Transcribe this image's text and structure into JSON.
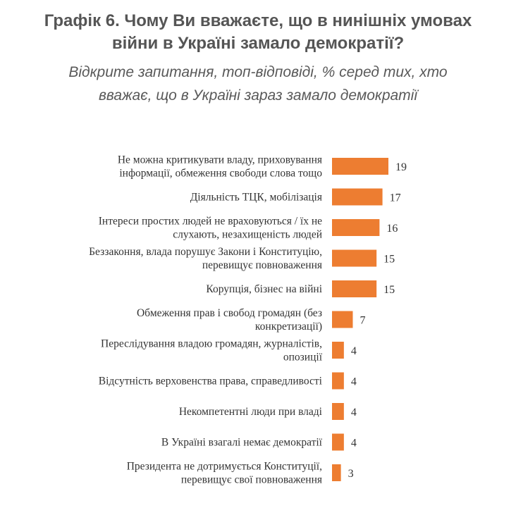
{
  "title_line1": "Графік 6. Чому Ви вважаєте, що в нинішніх умовах",
  "title_line2": "війни в Україні замало демократії?",
  "subtitle_line1": "Відкрите запитання, топ-відповіді, % серед тих, хто",
  "subtitle_line2": "вважає, що в Україні зараз замало демократії",
  "colors": {
    "bar": "#ED7D31",
    "text": "#333333",
    "title": "#555555"
  },
  "chart_data": {
    "type": "bar",
    "orientation": "horizontal",
    "categories": [
      [
        "Не можна критикувати владу, приховування",
        "інформації, обмеження свободи слова тощо"
      ],
      [
        "Діяльність ТЦК, мобілізація"
      ],
      [
        "Інтереси простих людей не враховуються / їх не",
        "слухають, незахищеність людей"
      ],
      [
        "Беззаконня, влада порушує Закони і Конституцію,",
        "перевищує повноваження"
      ],
      [
        "Корупція, бізнес на війні"
      ],
      [
        "Обмеження прав і свобод громадян (без",
        "конкретизації)"
      ],
      [
        "Переслідування владою громадян, журналістів,",
        "опозиції"
      ],
      [
        "Відсутність верховенства права, справедливості"
      ],
      [
        "Некомпетентні люди при владі"
      ],
      [
        "В Україні взагалі немає демократії"
      ],
      [
        "Президента не дотримується Конституції,",
        "перевищує свої повноваження"
      ]
    ],
    "values": [
      19,
      17,
      16,
      15,
      15,
      7,
      4,
      4,
      4,
      4,
      3
    ],
    "data_labels": [
      "19",
      "17",
      "16",
      "15",
      "15",
      "7",
      "4",
      "4",
      "4",
      "4",
      "3"
    ],
    "xlim": [
      0,
      19
    ],
    "grid": false,
    "legend": "none"
  }
}
